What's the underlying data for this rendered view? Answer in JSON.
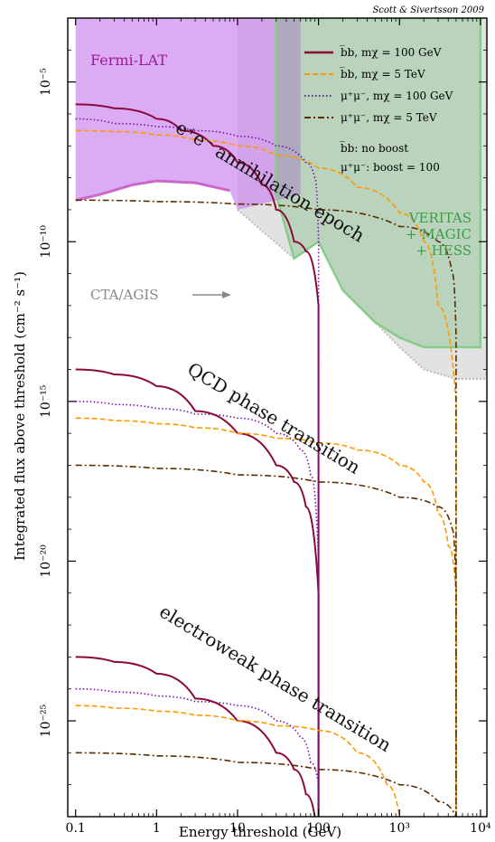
{
  "chart_data": {
    "type": "line",
    "credit": "Scott & Sivertsson 2009",
    "xlabel": "Energy threshold (GeV)",
    "ylabel": "Integrated flux above threshold (cm⁻² s⁻¹)",
    "x_scale": "log",
    "y_scale": "log",
    "xlim": [
      0.08,
      12000
    ],
    "ylim": [
      1e-28,
      0.001
    ],
    "x_ticks": [
      {
        "value": 0.1,
        "label": "0.1"
      },
      {
        "value": 1,
        "label": "1"
      },
      {
        "value": 10,
        "label": "10"
      },
      {
        "value": 100,
        "label": "100"
      },
      {
        "value": 1000,
        "label": "10³"
      },
      {
        "value": 10000,
        "label": "10⁴"
      }
    ],
    "y_ticks": [
      {
        "value": 1e-05,
        "label": "10⁻⁵"
      },
      {
        "value": 1e-10,
        "label": "10⁻¹⁰"
      },
      {
        "value": 1e-15,
        "label": "10⁻¹⁵"
      },
      {
        "value": 1e-20,
        "label": "10⁻²⁰"
      },
      {
        "value": 1e-25,
        "label": "10⁻²⁵"
      }
    ],
    "legend": {
      "placement": "top-right",
      "entries": [
        {
          "label": "b̅b, mχ = 100 GeV",
          "color": "#8b0a3c",
          "style": "solid"
        },
        {
          "label": "b̅b, mχ = 5 TeV",
          "color": "#ff9900",
          "style": "dashed"
        },
        {
          "label": "μ⁺μ⁻, mχ = 100 GeV",
          "color": "#7a0fa8",
          "style": "dotted"
        },
        {
          "label": "μ⁺μ⁻, mχ = 5 TeV",
          "color": "#5c2c00",
          "style": "dashdot"
        }
      ],
      "notes": [
        "b̅b: no boost",
        "μ⁺μ⁻: boost = 100"
      ]
    },
    "regions": [
      {
        "name": "Fermi-LAT",
        "color": "#cc88ee",
        "boundary": [
          [
            0.1,
            2e-09
          ],
          [
            0.2,
            3e-09
          ],
          [
            0.5,
            6e-09
          ],
          [
            1,
            8e-09
          ],
          [
            3,
            7e-09
          ],
          [
            8,
            4e-09
          ],
          [
            10,
            1e-09
          ],
          [
            60,
            3e-09
          ],
          [
            60,
            0.001
          ]
        ]
      },
      {
        "name": "VERITAS + MAGIC + HESS",
        "color": "#6db875",
        "boundary": [
          [
            30,
            0.001
          ],
          [
            30,
            3e-09
          ],
          [
            50,
            3e-11
          ],
          [
            100,
            1e-10
          ],
          [
            200,
            3e-12
          ],
          [
            500,
            3e-13
          ],
          [
            1000,
            1e-13
          ],
          [
            2000,
            5e-14
          ],
          [
            10000,
            5e-14
          ],
          [
            10000,
            0.001
          ]
        ]
      },
      {
        "name": "CTA/AGIS",
        "color": "#dddddd",
        "boundary": [
          [
            10,
            1e-09
          ],
          [
            50,
            3e-11
          ],
          [
            100,
            1e-10
          ],
          [
            200,
            3e-12
          ],
          [
            500,
            3e-13
          ],
          [
            1000,
            5e-14
          ],
          [
            2000,
            1e-14
          ],
          [
            5000,
            5e-15
          ],
          [
            12000,
            5e-15
          ]
        ]
      }
    ],
    "region_labels": {
      "fermi": "Fermi-LAT",
      "veritas": "VERITAS",
      "magic": "+ MAGIC",
      "hess": "+ HESS",
      "cta": "CTA/AGIS"
    },
    "epochs": [
      {
        "label": "e⁺e⁻ annihilation epoch",
        "series": [
          {
            "name": "b̅b, mχ = 100 GeV",
            "x": [
              0.1,
              0.3,
              1,
              2,
              5,
              10,
              20,
              30,
              50,
              70,
              100,
              100,
              100
            ],
            "y": [
              2e-06,
              1.5e-06,
              7e-07,
              3e-07,
              1e-07,
              3e-08,
              6e-09,
              1e-09,
              1e-10,
              5e-11,
              1e-12,
              1e-15,
              1e-28
            ]
          },
          {
            "name": "b̅b, mχ = 5 TeV",
            "x": [
              0.1,
              0.3,
              1,
              3,
              10,
              30,
              100,
              300,
              1000,
              2000,
              3000,
              5000,
              5000
            ],
            "y": [
              3e-07,
              2.8e-07,
              2.2e-07,
              1.5e-07,
              1e-07,
              5e-08,
              2e-08,
              5e-09,
              8e-10,
              1e-10,
              1e-12,
              1e-15,
              1e-28
            ]
          },
          {
            "name": "μ⁺μ⁻, mχ = 100 GeV",
            "x": [
              0.1,
              0.3,
              1,
              3,
              10,
              30,
              70,
              90,
              100,
              100
            ],
            "y": [
              7e-07,
              5e-07,
              4e-07,
              3e-07,
              2e-07,
              1e-07,
              3e-08,
              1e-08,
              1e-10,
              1e-28
            ]
          },
          {
            "name": "μ⁺μ⁻, mχ = 5 TeV",
            "x": [
              0.1,
              1,
              10,
              100,
              1000,
              3000,
              4500,
              5000,
              5000
            ],
            "y": [
              2e-09,
              1.8e-09,
              1.5e-09,
              1e-09,
              3e-10,
              1e-10,
              1e-11,
              1e-13,
              1e-28
            ]
          }
        ]
      },
      {
        "label": "QCD phase transition",
        "series": [
          {
            "name": "b̅b, mχ = 100 GeV",
            "x": [
              0.1,
              0.3,
              1,
              3,
              10,
              30,
              50,
              70,
              100,
              100
            ],
            "y": [
              1e-14,
              7e-15,
              3e-15,
              5e-16,
              1e-16,
              1e-17,
              3e-18,
              5e-19,
              1e-21,
              1e-28
            ]
          },
          {
            "name": "b̅b, mχ = 5 TeV",
            "x": [
              0.1,
              0.3,
              1,
              3,
              10,
              30,
              100,
              300,
              1000,
              2000,
              3000,
              4000,
              5000,
              5000
            ],
            "y": [
              3e-16,
              2.5e-16,
              2e-16,
              1.5e-16,
              1e-16,
              7e-17,
              5e-17,
              3e-17,
              1e-17,
              3e-18,
              3e-19,
              3e-20,
              1e-21,
              1e-28
            ]
          },
          {
            "name": "μ⁺μ⁻, mχ = 100 GeV",
            "x": [
              0.1,
              0.3,
              1,
              3,
              10,
              30,
              60,
              80,
              100,
              100
            ],
            "y": [
              1e-15,
              8e-16,
              6e-16,
              4e-16,
              3e-16,
              1e-16,
              3e-17,
              5e-18,
              1e-20,
              1e-28
            ]
          },
          {
            "name": "μ⁺μ⁻, mχ = 5 TeV",
            "x": [
              0.1,
              1,
              10,
              100,
              1000,
              3000,
              4500,
              5000,
              5000
            ],
            "y": [
              1e-17,
              8e-18,
              5e-18,
              3e-18,
              1e-18,
              5e-19,
              1e-19,
              1e-21,
              1e-28
            ]
          }
        ]
      },
      {
        "label": "electroweak phase transition",
        "series": [
          {
            "name": "b̅b, mχ = 100 GeV",
            "x": [
              0.1,
              0.3,
              1,
              3,
              10,
              30,
              50,
              70,
              90
            ],
            "y": [
              1e-23,
              7e-24,
              3e-24,
              5e-25,
              1e-25,
              1e-26,
              3e-27,
              5e-28,
              1e-28
            ]
          },
          {
            "name": "b̅b, mχ = 5 TeV",
            "x": [
              0.1,
              0.3,
              1,
              3,
              10,
              30,
              100,
              300,
              700,
              1000
            ],
            "y": [
              3e-25,
              2.5e-25,
              2e-25,
              1.5e-25,
              1e-25,
              7e-26,
              5e-26,
              1e-26,
              1e-27,
              1e-28
            ]
          },
          {
            "name": "μ⁺μ⁻, mχ = 100 GeV",
            "x": [
              0.1,
              0.3,
              1,
              3,
              10,
              30,
              60,
              80,
              100,
              100
            ],
            "y": [
              1e-24,
              8e-25,
              6e-25,
              4e-25,
              3e-25,
              1e-25,
              3e-26,
              5e-27,
              1e-27,
              1e-28
            ]
          },
          {
            "name": "μ⁺μ⁻, mχ = 5 TeV",
            "x": [
              0.1,
              1,
              10,
              100,
              1000,
              3000,
              5000
            ],
            "y": [
              1e-26,
              8e-27,
              5e-27,
              3e-27,
              1e-27,
              3e-28,
              1e-28
            ]
          }
        ]
      }
    ]
  }
}
